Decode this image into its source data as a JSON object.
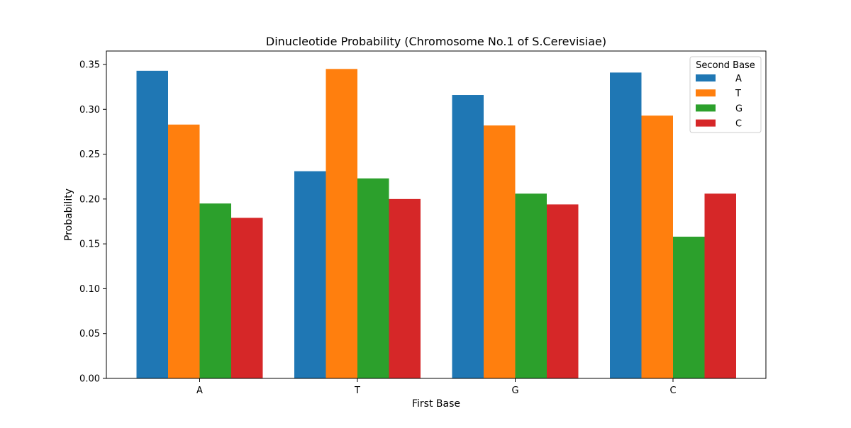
{
  "chart_data": {
    "type": "bar",
    "title": "Dinucleotide Probability (Chromosome No.1 of S.Cerevisiae)",
    "xlabel": "First Base",
    "ylabel": "Probability",
    "categories": [
      "A",
      "T",
      "G",
      "C"
    ],
    "ylim": [
      0,
      0.365
    ],
    "yticks": [
      "0.00",
      "0.05",
      "0.10",
      "0.15",
      "0.20",
      "0.25",
      "0.30",
      "0.35"
    ],
    "legend": {
      "title": "Second Base",
      "placement": "top-right"
    },
    "grid": false,
    "series": [
      {
        "name": "A",
        "color": "#1f77b4",
        "values": [
          0.343,
          0.231,
          0.316,
          0.341
        ]
      },
      {
        "name": "T",
        "color": "#ff7f0e",
        "values": [
          0.283,
          0.345,
          0.282,
          0.293
        ]
      },
      {
        "name": "G",
        "color": "#2ca02c",
        "values": [
          0.195,
          0.223,
          0.206,
          0.158
        ]
      },
      {
        "name": "C",
        "color": "#d62728",
        "values": [
          0.179,
          0.2,
          0.194,
          0.206
        ]
      }
    ]
  }
}
